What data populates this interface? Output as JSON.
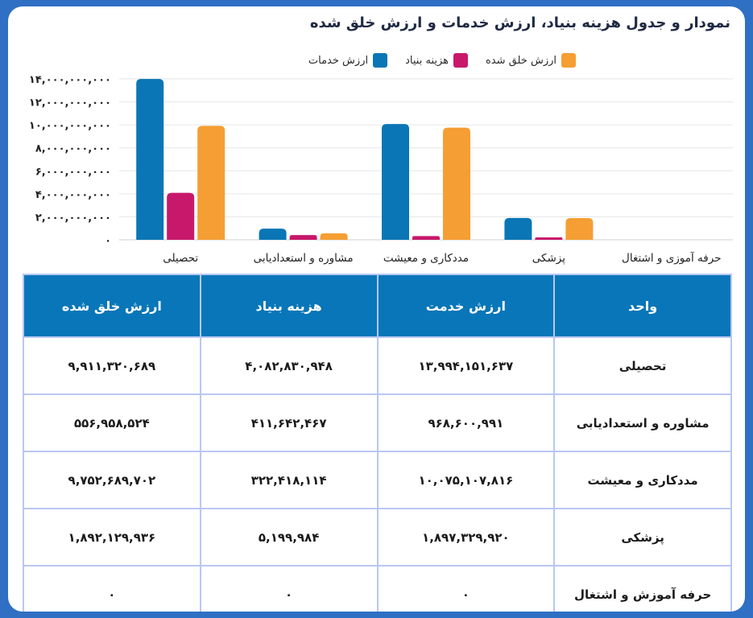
{
  "title": "نمودار و جدول هزینه بنیاد، ارزش خدمات و ارزش خلق شده",
  "chart_data": {
    "type": "bar",
    "categories": [
      "تحصیلی",
      "مشاوره و استعدادیابی",
      "مددکاری و معیشت",
      "پزشکی",
      "حرفه آموزی و اشتغال"
    ],
    "series": [
      {
        "name": "ارزش خدمات",
        "color": "#0a76b5",
        "values": [
          13994151637,
          968600991,
          10075107816,
          1897329920,
          0
        ]
      },
      {
        "name": "هزینه بنیاد",
        "color": "#c8186b",
        "values": [
          4082830948,
          411642467,
          322418114,
          5199984,
          0
        ]
      },
      {
        "name": "ارزش خلق شده",
        "color": "#f59e33",
        "values": [
          9911320689,
          556958524,
          9752689702,
          1892129936,
          0
        ]
      }
    ],
    "ylim": [
      0,
      14000000000
    ],
    "yticks": [
      "۰",
      "۲,۰۰۰,۰۰۰,۰۰۰",
      "۴,۰۰۰,۰۰۰,۰۰۰",
      "۶,۰۰۰,۰۰۰,۰۰۰",
      "۸,۰۰۰,۰۰۰,۰۰۰",
      "۱۰,۰۰۰,۰۰۰,۰۰۰",
      "۱۲,۰۰۰,۰۰۰,۰۰۰",
      "۱۴,۰۰۰,۰۰۰,۰۰۰"
    ],
    "legend_position": "top",
    "grid": true
  },
  "table": {
    "headers": [
      "واحد",
      "ارزش خدمت",
      "هزینه بنیاد",
      "ارزش خلق شده"
    ],
    "rows": [
      [
        "تحصیلی",
        "۱۳,۹۹۴,۱۵۱,۶۳۷",
        "۴,۰۸۲,۸۳۰,۹۴۸",
        "۹,۹۱۱,۳۲۰,۶۸۹"
      ],
      [
        "مشاوره و استعدادیابی",
        "۹۶۸,۶۰۰,۹۹۱",
        "۴۱۱,۶۴۲,۴۶۷",
        "۵۵۶,۹۵۸,۵۲۴"
      ],
      [
        "مددکاری و معیشت",
        "۱۰,۰۷۵,۱۰۷,۸۱۶",
        "۳۲۲,۴۱۸,۱۱۴",
        "۹,۷۵۲,۶۸۹,۷۰۲"
      ],
      [
        "پزشکی",
        "۱,۸۹۷,۳۲۹,۹۲۰",
        "۵,۱۹۹,۹۸۴",
        "۱,۸۹۲,۱۲۹,۹۳۶"
      ],
      [
        "حرفه آموزش و اشتغال",
        "۰",
        "۰",
        "۰"
      ]
    ]
  }
}
